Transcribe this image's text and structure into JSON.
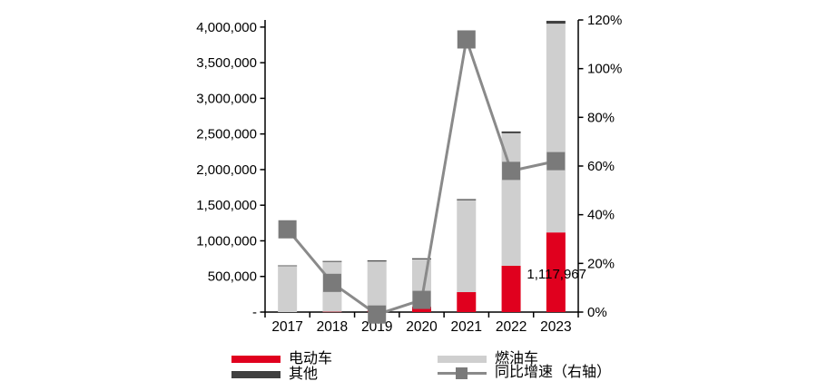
{
  "chart_data": {
    "type": "bar+line",
    "title": "",
    "categories": [
      "2017",
      "2018",
      "2019",
      "2020",
      "2021",
      "2022",
      "2023"
    ],
    "series": [
      {
        "key": "ev",
        "name": "电动车",
        "type": "bar",
        "stack": "total",
        "color": "#E0001E",
        "values": [
          0,
          5000,
          20000,
          75000,
          280000,
          650000,
          1117967
        ]
      },
      {
        "key": "fuel",
        "name": "燃油车",
        "type": "bar",
        "stack": "total",
        "color": "#CFCFCF",
        "values": [
          645000,
          700000,
          690000,
          665000,
          1290000,
          1860000,
          2930000
        ]
      },
      {
        "key": "other",
        "name": "其他",
        "type": "bar",
        "stack": "total",
        "color": "#404040",
        "values": [
          10000,
          12000,
          15000,
          15000,
          15000,
          25000,
          40000
        ]
      },
      {
        "key": "yoy",
        "name": "同比增速（右轴）",
        "type": "line",
        "axis": "right",
        "color": "#8A8A8A",
        "marker_color": "#7A7A7A",
        "values": [
          34,
          12,
          -1,
          5,
          112,
          58,
          62
        ],
        "unit": "%"
      }
    ],
    "left_axis": {
      "min": 0,
      "max": 4100000,
      "tick_interval": 500000,
      "tick_values": [
        0,
        500000,
        1000000,
        1500000,
        2000000,
        2500000,
        3000000,
        3500000,
        4000000
      ],
      "tick_labels": [
        "-",
        "500,000",
        "1,000,000",
        "1,500,000",
        "2,000,000",
        "2,500,000",
        "3,000,000",
        "3,500,000",
        "4,000,000"
      ]
    },
    "right_axis": {
      "min": 0,
      "max": 120,
      "tick_interval": 20,
      "tick_values": [
        0,
        20,
        40,
        60,
        80,
        100,
        120
      ],
      "tick_labels": [
        "0%",
        "20%",
        "40%",
        "60%",
        "80%",
        "100%",
        "120%"
      ]
    },
    "annotation": {
      "text": "1,117,967",
      "series": "电动车",
      "category": "2023"
    },
    "grid": false,
    "legend_position": "bottom",
    "colors": {
      "axis": "#000000",
      "background": "#FFFFFF"
    }
  }
}
